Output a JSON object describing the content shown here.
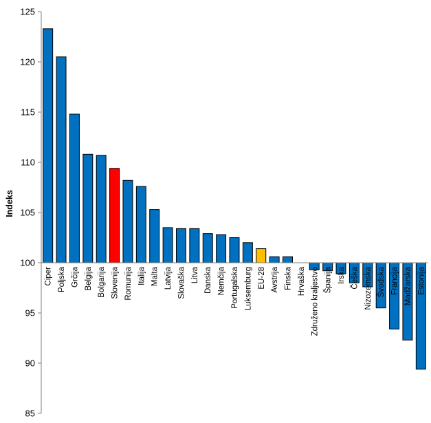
{
  "chart_data": {
    "type": "bar",
    "ylabel": "Indeks",
    "ylim": [
      85,
      125
    ],
    "y_ticks": [
      85,
      90,
      95,
      100,
      105,
      110,
      115,
      120,
      125
    ],
    "baseline": 100,
    "grid": false,
    "legend": "none",
    "categories": [
      "Ciper",
      "Poljska",
      "Grčija",
      "Belgija",
      "Bolgarija",
      "Slovenija",
      "Romunija",
      "Italija",
      "Malta",
      "Latvija",
      "Slovaška",
      "Litva",
      "Danska",
      "Nemčija",
      "Portugalska",
      "Luksemburg",
      "EU-28",
      "Avstrija",
      "Finska",
      "Hrvaška",
      "Združeno kraljestvo",
      "Španija",
      "Irska",
      "Češka",
      "Nizozemska",
      "Švedska",
      "Francija",
      "Madžarska",
      "Estonija"
    ],
    "values": [
      123.3,
      120.5,
      114.8,
      110.8,
      110.7,
      109.4,
      108.2,
      107.6,
      105.3,
      103.5,
      103.4,
      103.4,
      102.9,
      102.8,
      102.5,
      102.0,
      101.4,
      100.6,
      100.6,
      100.0,
      99.3,
      99.2,
      98.9,
      98.0,
      97.6,
      95.5,
      93.4,
      92.3,
      89.4
    ],
    "colors": {
      "default": "#0070C0",
      "Slovenija": "#FF0000",
      "EU-28": "#FFC000"
    }
  }
}
